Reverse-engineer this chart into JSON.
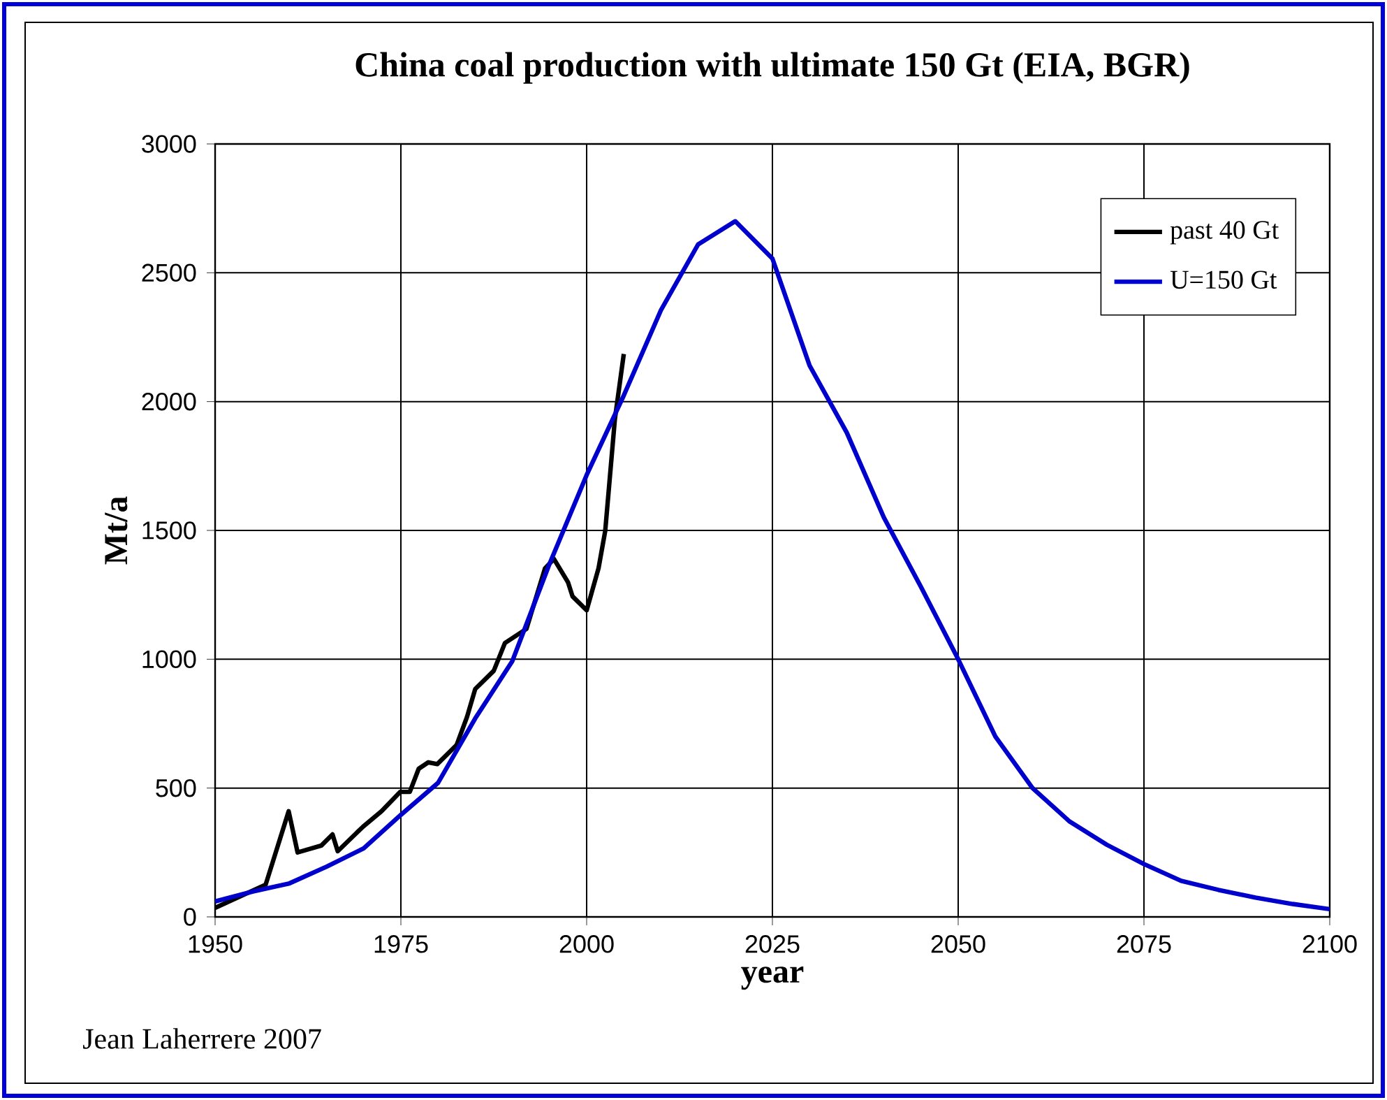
{
  "chart_data": {
    "type": "line",
    "title": "China coal production with ultimate 150 Gt (EIA, BGR)",
    "xlabel": "year",
    "ylabel": "Mt/a",
    "annotations": [
      "Jean Laherrere 2007"
    ],
    "xlim": [
      1950,
      2100
    ],
    "xticks": [
      1950,
      1975,
      2000,
      2025,
      2050,
      2075,
      2100
    ],
    "ylim": [
      0,
      3000
    ],
    "yticks": [
      0,
      500,
      1000,
      1500,
      2000,
      2500,
      3000
    ],
    "grid": true,
    "legend": "top right",
    "series": [
      {
        "name": "past 40 Gt",
        "color": "#000000",
        "x": [
          1950,
          1956.8,
          1959.9,
          1961.1,
          1964.3,
          1965.8,
          1966.5,
          1969.9,
          1972.4,
          1974.9,
          1976.2,
          1977.4,
          1978.7,
          1979.9,
          1982.5,
          1983.9,
          1985,
          1987.5,
          1989,
          1991.9,
          1994.4,
          1995.6,
          1997.5,
          1998.1,
          2000,
          2001.6,
          2002.5,
          2003.8,
          2005
        ],
        "values": [
          35,
          125,
          410,
          250,
          277,
          320,
          255,
          350,
          410,
          485,
          485,
          575,
          600,
          593,
          667,
          776,
          884,
          955,
          1063,
          1118,
          1353,
          1389,
          1298,
          1244,
          1190,
          1353,
          1498,
          1932,
          2185
        ]
      },
      {
        "name": "U=150 Gt",
        "color": "#0000cc",
        "x": [
          1950,
          1955,
          1960,
          1965,
          1970,
          1975,
          1980,
          1985,
          1990,
          1995,
          2000,
          2005,
          2010,
          2015,
          2020,
          2025,
          2030,
          2035,
          2040,
          2045,
          2050,
          2055,
          2060,
          2065,
          2070,
          2075,
          2080,
          2085,
          2090,
          2095,
          2100
        ],
        "values": [
          60,
          98,
          130,
          195,
          266,
          396,
          520,
          770,
          993,
          1370,
          1715,
          2024,
          2355,
          2610,
          2700,
          2555,
          2140,
          1880,
          1550,
          1280,
          1000,
          700,
          500,
          370,
          280,
          205,
          140,
          105,
          75,
          50,
          30
        ]
      }
    ]
  }
}
